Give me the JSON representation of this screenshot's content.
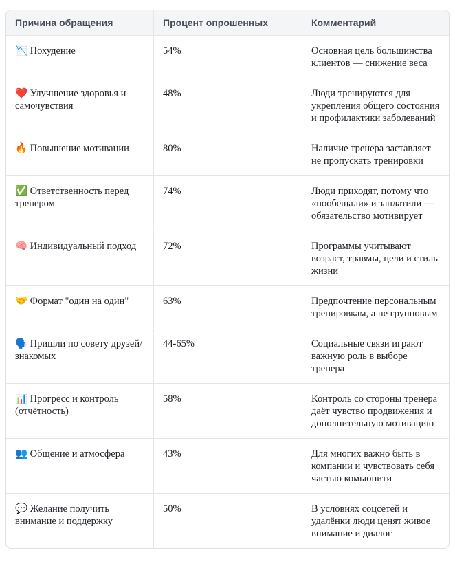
{
  "table": {
    "header": [
      "Причина обращения",
      "Процент опрошенных",
      "Комментарий"
    ],
    "rows": [
      [
        "📉 Похудение",
        "54%",
        "Основная цель большинства клиентов — снижение веса"
      ],
      [
        "❤️ Улучшение здоровья и самочувствия",
        "48%",
        "Люди тренируются для укрепления общего состояния и профилактики заболеваний"
      ],
      [
        "🔥 Повышение мотивации",
        "80%",
        "Наличие тренера заставляет не пропускать тренировки"
      ],
      [
        "✅ Ответственность перед тренером",
        "74%",
        "Люди приходят, потому что «пообещали» и заплатили — обязательство мотивирует"
      ],
      [
        "🧠 Индивидуальный подход",
        "72%",
        "Программы учитывают возраст, травмы, цели и стиль жизни"
      ],
      [
        "🤝 Формат \"один на один\"",
        "63%",
        "Предпочтение персональным тренировкам, а не групповым"
      ],
      [
        "🗣️ Пришли по совету друзей/знакомых",
        "44-65%",
        "Социальные связи играют важную роль в выборе тренера"
      ],
      [
        "📊 Прогресс и контроль (отчётность)",
        "58%",
        "Контроль со стороны тренера даёт чувство продвижения и дополнительную мотивацию"
      ],
      [
        "👥 Общение и атмосфера",
        "43%",
        "Для многих важно быть в компании и чувствовать себя частью комьюнити"
      ],
      [
        "💬 Желание получить внимание и поддержку",
        "50%",
        "В условиях соцсетей и удалёнки люди ценят живое внимание и диалог"
      ]
    ]
  }
}
